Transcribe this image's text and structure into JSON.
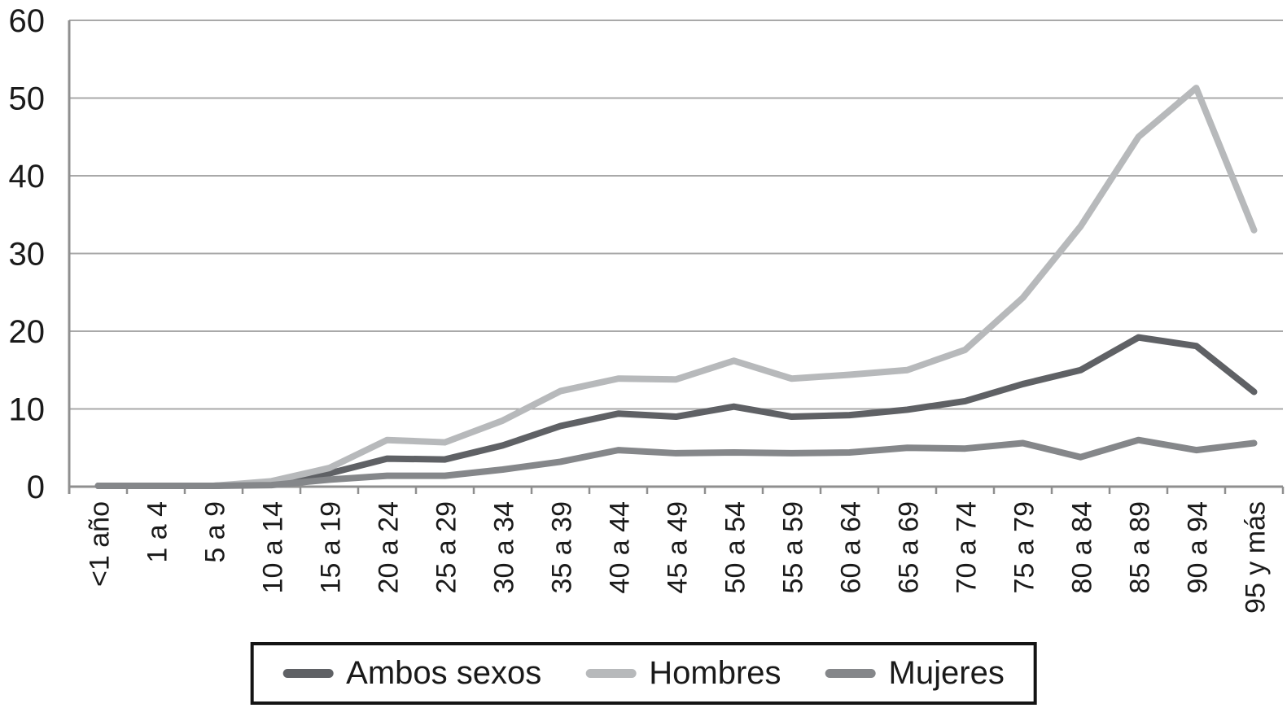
{
  "chart_data": {
    "type": "line",
    "title": "",
    "xlabel": "",
    "ylabel": "",
    "categories": [
      "<1 año",
      "1 a 4",
      "5 a 9",
      "10 a 14",
      "15 a 19",
      "20 a 24",
      "25 a 29",
      "30 a 34",
      "35 a 39",
      "40 a 44",
      "45 a 49",
      "50 a 54",
      "55 a 59",
      "60 a 64",
      "65 a 69",
      "70 a 74",
      "75 a 79",
      "80 a 84",
      "85 a 89",
      "90 a 94",
      "95 y más"
    ],
    "series": [
      {
        "name": "Ambos sexos",
        "color": "#5f6165",
        "values": [
          0.1,
          0.1,
          0.1,
          0.4,
          1.7,
          3.6,
          3.5,
          5.3,
          7.8,
          9.4,
          9.0,
          10.3,
          9.0,
          9.2,
          9.9,
          11.0,
          13.2,
          15.0,
          19.2,
          18.1,
          12.2
        ]
      },
      {
        "name": "Hombres",
        "color": "#b7b9bb",
        "values": [
          0.1,
          0.1,
          0.1,
          0.7,
          2.4,
          6.0,
          5.7,
          8.5,
          12.3,
          13.9,
          13.8,
          16.2,
          13.9,
          14.4,
          15.0,
          17.6,
          24.3,
          33.5,
          45.0,
          51.3,
          33.0
        ]
      },
      {
        "name": "Mujeres",
        "color": "#85878a",
        "values": [
          0.1,
          0.1,
          0.1,
          0.2,
          0.9,
          1.4,
          1.4,
          2.2,
          3.2,
          4.7,
          4.3,
          4.4,
          4.3,
          4.4,
          5.0,
          4.9,
          5.6,
          3.8,
          6.0,
          4.7,
          5.6
        ]
      }
    ],
    "ylim": [
      0,
      60
    ],
    "yticks": [
      0,
      10,
      20,
      30,
      40,
      50,
      60
    ],
    "grid": true,
    "legend_position": "bottom",
    "grid_color": "#a9a9a9",
    "axis_color": "#8f8f8f",
    "tick_label_color": "#1a1a1a"
  }
}
